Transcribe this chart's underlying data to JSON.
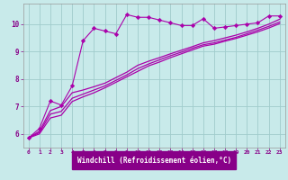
{
  "bg_color": "#c8eaea",
  "plot_bg_color": "#c8eaea",
  "line_color": "#aa00aa",
  "grid_color": "#a0cccc",
  "xlabel": "Windchill (Refroidissement éolien,°C)",
  "xlabel_color": "#ffffff",
  "xlabel_bg": "#880088",
  "tick_color": "#880088",
  "ylim": [
    5.5,
    10.75
  ],
  "xlim": [
    -0.5,
    23.5
  ],
  "yticks": [
    6,
    7,
    8,
    9,
    10
  ],
  "xticks": [
    0,
    1,
    2,
    3,
    4,
    5,
    6,
    7,
    8,
    9,
    10,
    11,
    12,
    13,
    14,
    15,
    16,
    17,
    18,
    19,
    20,
    21,
    22,
    23
  ],
  "series1_x": [
    0,
    1,
    2,
    3,
    4,
    5,
    6,
    7,
    8,
    9,
    10,
    11,
    12,
    13,
    14,
    15,
    16,
    17,
    18,
    19,
    20,
    21,
    22,
    23
  ],
  "series1_y": [
    5.85,
    6.2,
    7.2,
    7.05,
    7.75,
    9.4,
    9.85,
    9.75,
    9.65,
    10.35,
    10.25,
    10.25,
    10.15,
    10.05,
    9.95,
    9.95,
    10.2,
    9.85,
    9.9,
    9.95,
    10.0,
    10.05,
    10.3,
    10.3
  ],
  "series2_x": [
    0,
    1,
    2,
    3,
    4,
    5,
    6,
    7,
    8,
    9,
    10,
    11,
    12,
    13,
    14,
    15,
    16,
    17,
    18,
    19,
    20,
    21,
    22,
    23
  ],
  "series2_y": [
    5.85,
    6.1,
    6.85,
    7.0,
    7.5,
    7.6,
    7.72,
    7.85,
    8.05,
    8.25,
    8.5,
    8.65,
    8.78,
    8.92,
    9.05,
    9.18,
    9.32,
    9.4,
    9.5,
    9.6,
    9.72,
    9.85,
    10.0,
    10.18
  ],
  "series3_x": [
    0,
    1,
    2,
    3,
    4,
    5,
    6,
    7,
    8,
    9,
    10,
    11,
    12,
    13,
    14,
    15,
    16,
    17,
    18,
    19,
    20,
    21,
    22,
    23
  ],
  "series3_y": [
    5.85,
    6.05,
    6.72,
    6.82,
    7.3,
    7.45,
    7.6,
    7.75,
    7.95,
    8.15,
    8.38,
    8.55,
    8.7,
    8.85,
    8.98,
    9.12,
    9.25,
    9.32,
    9.42,
    9.52,
    9.65,
    9.78,
    9.92,
    10.08
  ],
  "series4_x": [
    0,
    1,
    2,
    3,
    4,
    5,
    6,
    7,
    8,
    9,
    10,
    11,
    12,
    13,
    14,
    15,
    16,
    17,
    18,
    19,
    20,
    21,
    22,
    23
  ],
  "series4_y": [
    5.85,
    6.0,
    6.58,
    6.68,
    7.18,
    7.35,
    7.5,
    7.68,
    7.88,
    8.08,
    8.28,
    8.48,
    8.62,
    8.78,
    8.92,
    9.06,
    9.2,
    9.27,
    9.38,
    9.48,
    9.6,
    9.72,
    9.86,
    10.02
  ]
}
